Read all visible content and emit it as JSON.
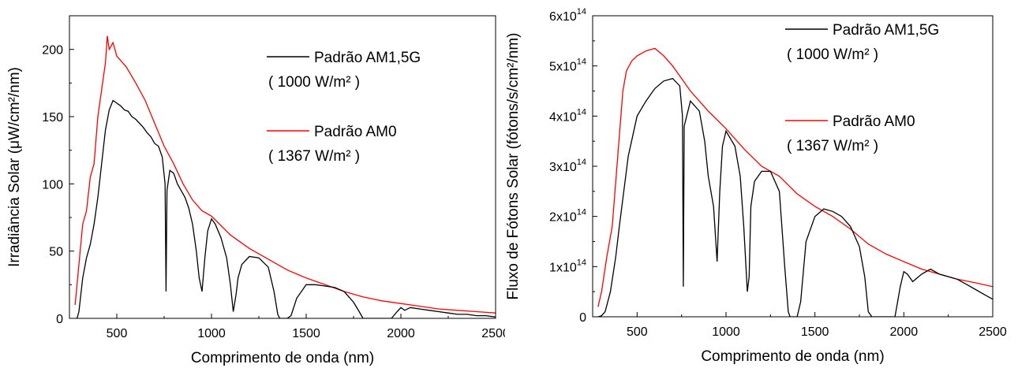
{
  "chart_data": [
    {
      "type": "line",
      "xlabel": "Comprimento de onda (nm)",
      "ylabel": "Irradiância Solar (μW/cm²/nm)",
      "xlim": [
        250,
        2500
      ],
      "ylim": [
        0,
        225
      ],
      "xticks": [
        500,
        1000,
        1500,
        2000,
        2500
      ],
      "xtick_labels": [
        "500",
        "1000",
        "1500",
        "2000",
        "2500"
      ],
      "yticks": [
        0,
        50,
        100,
        150,
        200
      ],
      "ytick_labels": [
        "0",
        "50",
        "100",
        "150",
        "200"
      ],
      "legend_position": "top-right",
      "series": [
        {
          "name": "Padrão AM1,5G",
          "note": "( 1000 W/m² )",
          "color": "#000000",
          "x": [
            280,
            290,
            300,
            320,
            340,
            360,
            380,
            400,
            420,
            440,
            460,
            480,
            500,
            520,
            540,
            560,
            580,
            600,
            620,
            640,
            660,
            680,
            700,
            720,
            740,
            755,
            760,
            765,
            780,
            800,
            820,
            840,
            860,
            880,
            900,
            920,
            935,
            950,
            965,
            980,
            1000,
            1020,
            1050,
            1080,
            1100,
            1115,
            1130,
            1140,
            1160,
            1200,
            1250,
            1300,
            1330,
            1350,
            1360,
            1400,
            1420,
            1450,
            1500,
            1550,
            1600,
            1650,
            1700,
            1750,
            1780,
            1800,
            1820,
            1850,
            1900,
            1950,
            1980,
            2000,
            2020,
            2050,
            2100,
            2150,
            2200,
            2250,
            2300,
            2350,
            2400,
            2450,
            2500
          ],
          "y": [
            0,
            0,
            5,
            30,
            45,
            55,
            70,
            90,
            115,
            140,
            155,
            162,
            160,
            158,
            155,
            154,
            150,
            148,
            145,
            142,
            138,
            135,
            130,
            128,
            120,
            100,
            20,
            95,
            110,
            108,
            100,
            95,
            90,
            82,
            70,
            50,
            30,
            20,
            45,
            65,
            74,
            70,
            60,
            45,
            25,
            5,
            18,
            30,
            40,
            46,
            45,
            38,
            20,
            3,
            0,
            0,
            2,
            15,
            25,
            25,
            24,
            23,
            20,
            12,
            5,
            0,
            0,
            0,
            0,
            0,
            5,
            8,
            6,
            8,
            7,
            6,
            5,
            4,
            3,
            3,
            2,
            2,
            1
          ]
        },
        {
          "name": "Padrão AM0",
          "note": "( 1367 W/m² )",
          "color": "#ff0000",
          "x": [
            280,
            300,
            320,
            340,
            360,
            380,
            400,
            420,
            440,
            450,
            460,
            480,
            500,
            550,
            600,
            650,
            700,
            750,
            800,
            850,
            900,
            950,
            1000,
            1100,
            1200,
            1300,
            1400,
            1500,
            1600,
            1700,
            1800,
            1900,
            2000,
            2100,
            2200,
            2300,
            2400,
            2500
          ],
          "y": [
            10,
            40,
            70,
            80,
            105,
            115,
            150,
            170,
            190,
            210,
            200,
            205,
            195,
            187,
            175,
            162,
            145,
            128,
            115,
            100,
            88,
            80,
            76,
            62,
            52,
            44,
            36,
            30,
            25,
            20,
            16,
            13,
            11,
            9,
            7,
            6,
            5,
            4
          ]
        }
      ]
    },
    {
      "type": "line",
      "xlabel": "Comprimento de onda (nm)",
      "ylabel": "Fluxo de Fótons Solar (fótons/s/cm²/nm)",
      "xlim": [
        250,
        2500
      ],
      "ylim": [
        0,
        600000000000000.0
      ],
      "xticks": [
        500,
        1000,
        1500,
        2000,
        2500
      ],
      "xtick_labels": [
        "500",
        "1000",
        "1500",
        "2000",
        "2500"
      ],
      "yticks": [
        0,
        100000000000000.0,
        200000000000000.0,
        300000000000000.0,
        400000000000000.0,
        500000000000000.0,
        600000000000000.0
      ],
      "ytick_labels": [
        "0",
        "1x10",
        "2x10",
        "3x10",
        "4x10",
        "5x10",
        "6x10"
      ],
      "ytick_exponent": "14",
      "legend_position": "top-right",
      "series": [
        {
          "name": "Padrão AM1,5G",
          "note": "( 1000 W/m² )",
          "color": "#000000",
          "x": [
            280,
            300,
            320,
            350,
            380,
            400,
            450,
            500,
            550,
            600,
            650,
            700,
            740,
            755,
            760,
            765,
            800,
            850,
            880,
            900,
            930,
            950,
            965,
            980,
            1000,
            1050,
            1080,
            1100,
            1120,
            1130,
            1140,
            1160,
            1200,
            1250,
            1300,
            1330,
            1350,
            1360,
            1400,
            1420,
            1450,
            1500,
            1550,
            1600,
            1650,
            1700,
            1750,
            1780,
            1800,
            1820,
            1850,
            1900,
            1950,
            1980,
            2000,
            2020,
            2050,
            2100,
            2150,
            2200,
            2250,
            2300,
            2350,
            2400,
            2450,
            2500
          ],
          "y": [
            0,
            2000000000000.0,
            10000000000000.0,
            50000000000000.0,
            120000000000000.0,
            180000000000000.0,
            320000000000000.0,
            400000000000000.0,
            430000000000000.0,
            455000000000000.0,
            470000000000000.0,
            475000000000000.0,
            460000000000000.0,
            400000000000000.0,
            60000000000000.0,
            380000000000000.0,
            430000000000000.0,
            410000000000000.0,
            350000000000000.0,
            280000000000000.0,
            220000000000000.0,
            110000000000000.0,
            250000000000000.0,
            340000000000000.0,
            370000000000000.0,
            340000000000000.0,
            280000000000000.0,
            180000000000000.0,
            50000000000000.0,
            80000000000000.0,
            220000000000000.0,
            270000000000000.0,
            290000000000000.0,
            290000000000000.0,
            250000000000000.0,
            100000000000000.0,
            10000000000000.0,
            0,
            0,
            30000000000000.0,
            150000000000000.0,
            200000000000000.0,
            215000000000000.0,
            210000000000000.0,
            200000000000000.0,
            180000000000000.0,
            140000000000000.0,
            80000000000000.0,
            10000000000000.0,
            0,
            0,
            0,
            0,
            60000000000000.0,
            90000000000000.0,
            85000000000000.0,
            70000000000000.0,
            85000000000000.0,
            95000000000000.0,
            85000000000000.0,
            80000000000000.0,
            75000000000000.0,
            65000000000000.0,
            55000000000000.0,
            45000000000000.0,
            35000000000000.0
          ]
        },
        {
          "name": "Padrão AM0",
          "note": "( 1367 W/m² )",
          "color": "#ff0000",
          "x": [
            280,
            300,
            330,
            360,
            400,
            420,
            440,
            470,
            500,
            550,
            600,
            650,
            700,
            800,
            900,
            1000,
            1100,
            1200,
            1300,
            1400,
            1500,
            1600,
            1700,
            1800,
            1900,
            2000,
            2100,
            2200,
            2300,
            2400,
            2500
          ],
          "y": [
            20000000000000.0,
            50000000000000.0,
            120000000000000.0,
            180000000000000.0,
            360000000000000.0,
            450000000000000.0,
            490000000000000.0,
            510000000000000.0,
            520000000000000.0,
            530000000000000.0,
            535000000000000.0,
            520000000000000.0,
            500000000000000.0,
            450000000000000.0,
            410000000000000.0,
            375000000000000.0,
            335000000000000.0,
            300000000000000.0,
            280000000000000.0,
            245000000000000.0,
            220000000000000.0,
            200000000000000.0,
            175000000000000.0,
            145000000000000.0,
            125000000000000.0,
            110000000000000.0,
            95000000000000.0,
            85000000000000.0,
            75000000000000.0,
            68000000000000.0,
            60000000000000.0
          ]
        }
      ]
    }
  ]
}
